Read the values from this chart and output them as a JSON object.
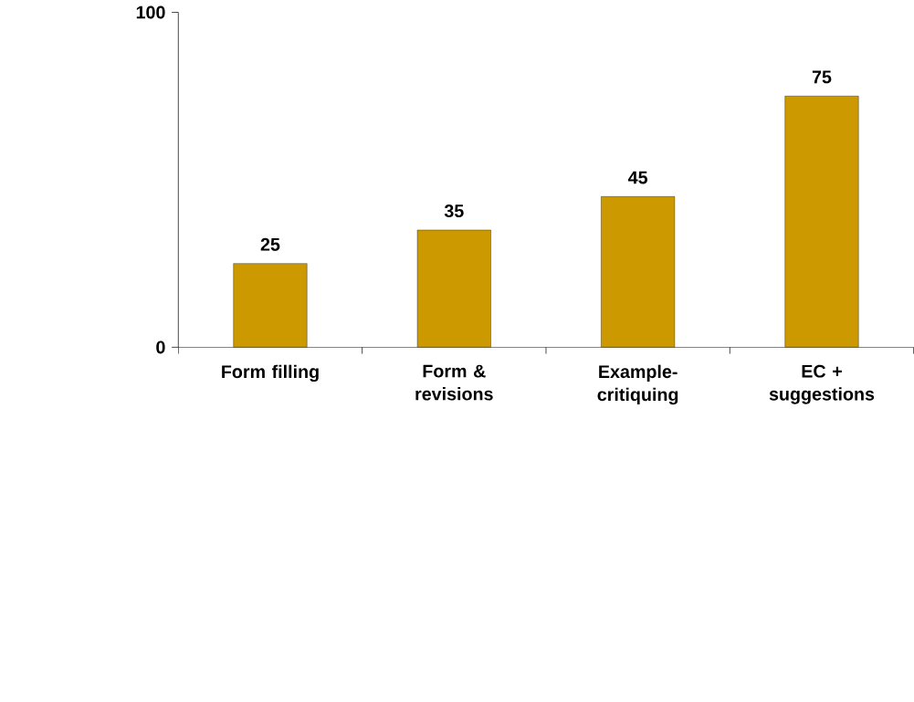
{
  "chart_data": {
    "type": "bar",
    "categories": [
      "Form filling",
      "Form & revisions",
      "Example-critiquing",
      "EC + suggestions"
    ],
    "values": [
      25,
      35,
      45,
      75
    ],
    "color": "#cc9900",
    "ylim": [
      0,
      100
    ],
    "yticks": [
      0,
      100
    ],
    "data_labels": true,
    "grid": false
  }
}
